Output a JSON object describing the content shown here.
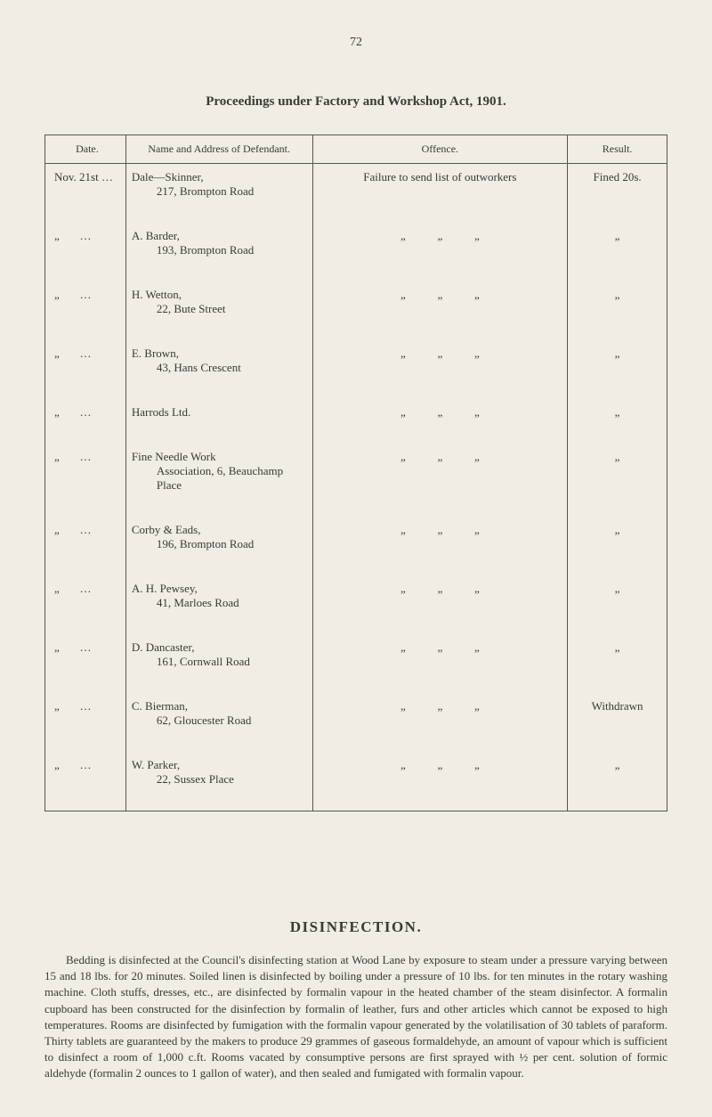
{
  "pageNumber": "72",
  "tableCaption": "Proceedings under Factory and Workshop Act, 1901.",
  "columns": {
    "date": "Date.",
    "name": "Name and Address of Defendant.",
    "offence": "Offence.",
    "result": "Result."
  },
  "rows": [
    {
      "date": "Nov. 21st …",
      "name": "Dale—Skinner,",
      "addr": "217, Brompton Road",
      "offence": "Failure to send list of outworkers",
      "result": "Fined 20s."
    },
    {
      "date": "„       …",
      "name": "A. Barder,",
      "addr": "193, Brompton Road",
      "offence": "„           „           „",
      "result": "„"
    },
    {
      "date": "„       …",
      "name": "H. Wetton,",
      "addr": "22, Bute Street",
      "offence": "„           „           „",
      "result": "„"
    },
    {
      "date": "„       …",
      "name": "E. Brown,",
      "addr": "43, Hans Crescent",
      "offence": "„           „           „",
      "result": "„"
    },
    {
      "date": "„       …",
      "name": "Harrods Ltd.",
      "addr": "",
      "offence": "„           „           „",
      "result": "„"
    },
    {
      "date": "„       …",
      "name": "Fine Needle Work",
      "addr": "            Association, 6, Beauchamp Place",
      "offence": "„           „           „",
      "result": "„"
    },
    {
      "date": "„       …",
      "name": "Corby & Eads,",
      "addr": "196, Brompton Road",
      "offence": "„           „           „",
      "result": "„"
    },
    {
      "date": "„       …",
      "name": "A. H. Pewsey,",
      "addr": "41, Marloes Road",
      "offence": "„           „           „",
      "result": "„"
    },
    {
      "date": "„       …",
      "name": "D. Dancaster,",
      "addr": "161, Cornwall Road",
      "offence": "„           „           „",
      "result": "„"
    },
    {
      "date": "„       …",
      "name": "C. Bierman,",
      "addr": "62, Gloucester Road",
      "offence": "„           „           „",
      "result": "Withdrawn"
    },
    {
      "date": "„       …",
      "name": "W. Parker,",
      "addr": "22, Sussex Place",
      "offence": "„           „           „",
      "result": "„"
    }
  ],
  "sectionTitle": "DISINFECTION.",
  "bodyText": "Bedding is disinfected at the Council's disinfecting station at Wood Lane by exposure to steam under a pressure varying between 15 and 18 lbs. for 20 minutes. Soiled linen is disinfected by boiling under a pressure of 10 lbs. for ten minutes in the rotary washing machine. Cloth stuffs, dresses, etc., are disinfected by formalin vapour in the heated chamber of the steam disinfector. A formalin cupboard has been constructed for the disinfection by formalin of leather, furs and other articles which cannot be exposed to high temperatures. Rooms are disinfected by fumigation with the formalin vapour generated by the volatilisation of 30 tablets of paraform. Thirty tablets are guaranteed by the makers to produce 29 grammes of gaseous formaldehyde, an amount of vapour which is sufficient to disinfect a room of 1,000 c.ft. Rooms vacated by consumptive persons are first sprayed with ½ per cent. solution of formic aldehyde (formalin 2 ounces to 1 gallon of water), and then sealed and fumigated with formalin vapour."
}
